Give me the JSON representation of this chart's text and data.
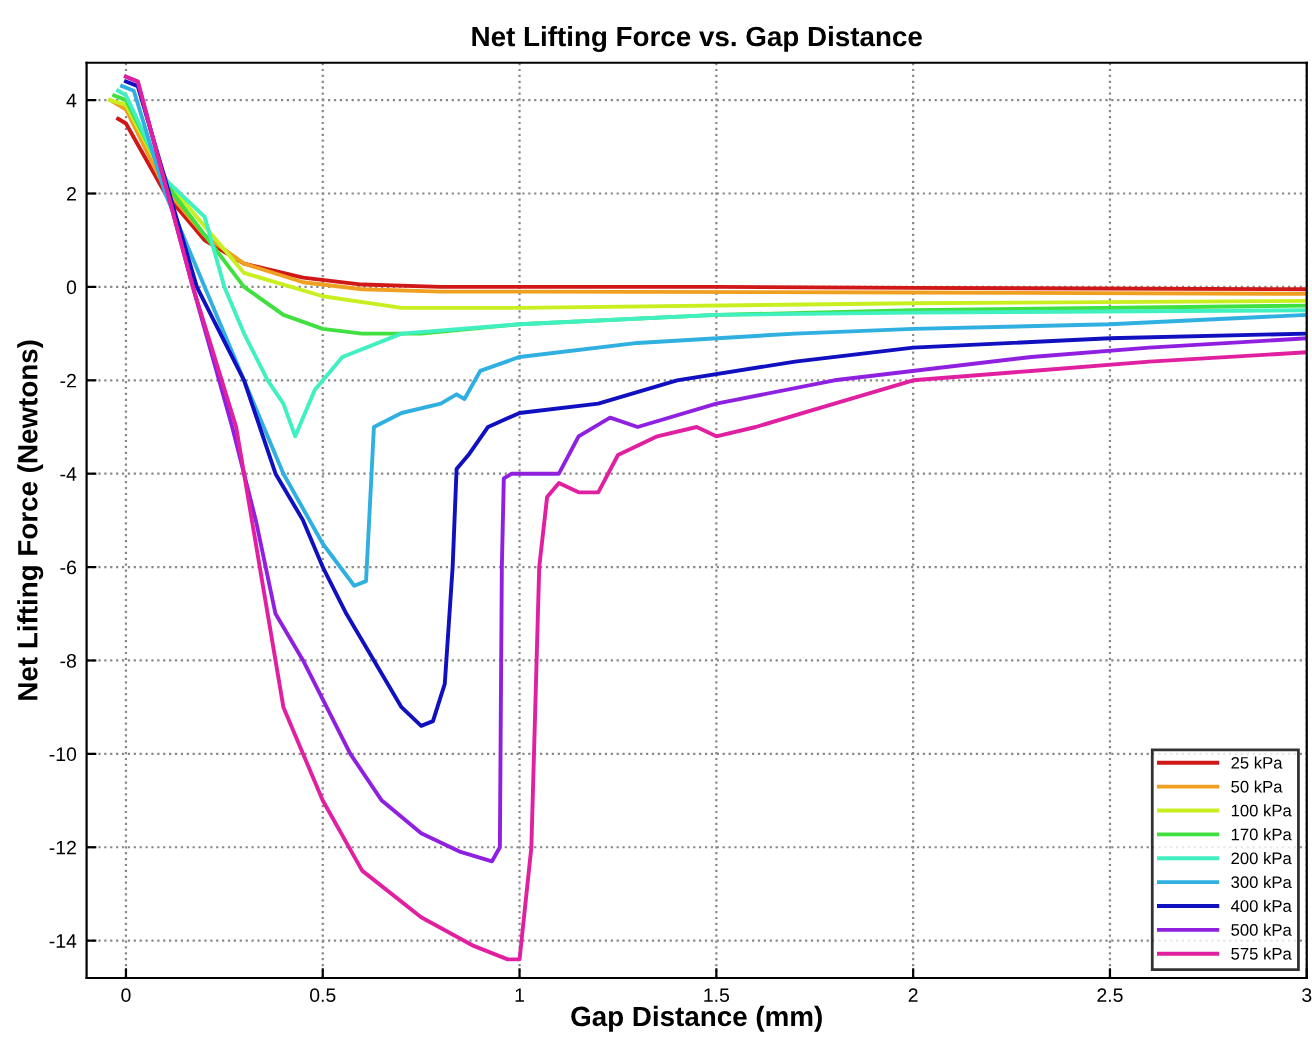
{
  "chart_data": {
    "type": "line",
    "title": "Net Lifting Force vs. Gap Distance",
    "xlabel": "Gap Distance (mm)",
    "ylabel": "Net Lifting Force (Newtons)",
    "xlim": [
      -0.1,
      3
    ],
    "ylim": [
      -14.8,
      4.8
    ],
    "xticks": [
      0,
      0.5,
      1,
      1.5,
      2,
      2.5,
      3
    ],
    "yticks": [
      -14,
      -12,
      -10,
      -8,
      -6,
      -4,
      -2,
      0,
      2,
      4
    ],
    "grid": true,
    "legend": "bottom right",
    "line_style": "solid",
    "marker": "none",
    "series": [
      {
        "name": "25 kPa",
        "color": "#d01818",
        "x": [
          -0.02,
          0,
          0.1,
          0.2,
          0.3,
          0.45,
          0.6,
          0.8,
          1.5,
          2,
          3
        ],
        "values": [
          3.6,
          3.5,
          2,
          1,
          0.5,
          0.2,
          0.05,
          0,
          0,
          -0.02,
          -0.05
        ]
      },
      {
        "name": "50 kPa",
        "color": "#f0a020",
        "x": [
          -0.04,
          0,
          0.1,
          0.2,
          0.3,
          0.45,
          0.6,
          0.8,
          1,
          2,
          3
        ],
        "values": [
          4.0,
          3.8,
          2.1,
          1.1,
          0.5,
          0.1,
          -0.05,
          -0.1,
          -0.1,
          -0.12,
          -0.15
        ]
      },
      {
        "name": "100 kPa",
        "color": "#c8f020",
        "x": [
          -0.04,
          0,
          0.1,
          0.2,
          0.3,
          0.5,
          0.7,
          1,
          2,
          3
        ],
        "values": [
          4.0,
          3.9,
          2.3,
          1.3,
          0.3,
          -0.2,
          -0.45,
          -0.45,
          -0.35,
          -0.3
        ]
      },
      {
        "name": "170 kPa",
        "color": "#40e040",
        "x": [
          -0.03,
          0,
          0.12,
          0.3,
          0.4,
          0.5,
          0.6,
          0.75,
          1,
          1.5,
          2,
          3
        ],
        "values": [
          4.1,
          4.0,
          2,
          0,
          -0.6,
          -0.9,
          -1.0,
          -1.0,
          -0.8,
          -0.6,
          -0.5,
          -0.4
        ]
      },
      {
        "name": "200 kPa",
        "color": "#40f0c0",
        "x": [
          -0.02,
          0,
          0.1,
          0.2,
          0.25,
          0.3,
          0.36,
          0.4,
          0.43,
          0.48,
          0.55,
          0.7,
          1,
          1.5,
          2,
          3
        ],
        "values": [
          4.2,
          4.1,
          2.3,
          1.5,
          0,
          -1,
          -2,
          -2.5,
          -3.2,
          -2.2,
          -1.5,
          -1,
          -0.8,
          -0.6,
          -0.55,
          -0.5
        ]
      },
      {
        "name": "300 kPa",
        "color": "#30b0e0",
        "x": [
          -0.01,
          0.02,
          0.1,
          0.2,
          0.3,
          0.4,
          0.5,
          0.58,
          0.61,
          0.63,
          0.7,
          0.8,
          0.84,
          0.86,
          0.9,
          1,
          1.3,
          1.7,
          2,
          2.5,
          3
        ],
        "values": [
          4.3,
          4.2,
          2,
          0,
          -2,
          -4,
          -5.5,
          -6.4,
          -6.3,
          -3,
          -2.7,
          -2.5,
          -2.3,
          -2.4,
          -1.8,
          -1.5,
          -1.2,
          -1.0,
          -0.9,
          -0.8,
          -0.6
        ]
      },
      {
        "name": "400 kPa",
        "color": "#1010c0",
        "x": [
          0,
          0.03,
          0.18,
          0.3,
          0.38,
          0.45,
          0.5,
          0.56,
          0.63,
          0.7,
          0.75,
          0.78,
          0.81,
          0.83,
          0.84,
          0.87,
          0.92,
          1,
          1.2,
          1.4,
          1.7,
          2,
          2.5,
          3
        ],
        "values": [
          4.4,
          4.3,
          0,
          -2,
          -4,
          -5,
          -6,
          -7,
          -8,
          -9,
          -9.4,
          -9.3,
          -8.5,
          -6,
          -3.9,
          -3.6,
          -3,
          -2.7,
          -2.5,
          -2.0,
          -1.6,
          -1.3,
          -1.1,
          -1.0
        ]
      },
      {
        "name": "500 kPa",
        "color": "#9020e0",
        "x": [
          0,
          0.03,
          0.17,
          0.27,
          0.33,
          0.38,
          0.45,
          0.57,
          0.65,
          0.75,
          0.85,
          0.93,
          0.95,
          0.955,
          0.96,
          0.98,
          1.1,
          1.15,
          1.23,
          1.3,
          1.5,
          1.8,
          2.3,
          2.6,
          3
        ],
        "values": [
          4.5,
          4.4,
          0,
          -3,
          -5,
          -7,
          -8,
          -10,
          -11,
          -11.7,
          -12.1,
          -12.3,
          -12,
          -6,
          -4.1,
          -4,
          -4,
          -3.2,
          -2.8,
          -3.0,
          -2.5,
          -2,
          -1.5,
          -1.3,
          -1.1
        ]
      },
      {
        "name": "575 kPa",
        "color": "#e020a0",
        "x": [
          0,
          0.03,
          0.17,
          0.28,
          0.34,
          0.4,
          0.5,
          0.6,
          0.75,
          0.88,
          0.97,
          1.0,
          1.03,
          1.05,
          1.07,
          1.1,
          1.15,
          1.2,
          1.25,
          1.35,
          1.45,
          1.5,
          1.6,
          1.8,
          2.0,
          2.3,
          2.6,
          3
        ],
        "values": [
          4.5,
          4.4,
          0,
          -3,
          -6,
          -9,
          -11,
          -12.5,
          -13.5,
          -14.1,
          -14.4,
          -14.4,
          -12,
          -6,
          -4.5,
          -4.2,
          -4.4,
          -4.4,
          -3.6,
          -3.2,
          -3.0,
          -3.2,
          -3.0,
          -2.5,
          -2.0,
          -1.8,
          -1.6,
          -1.4
        ]
      }
    ]
  }
}
